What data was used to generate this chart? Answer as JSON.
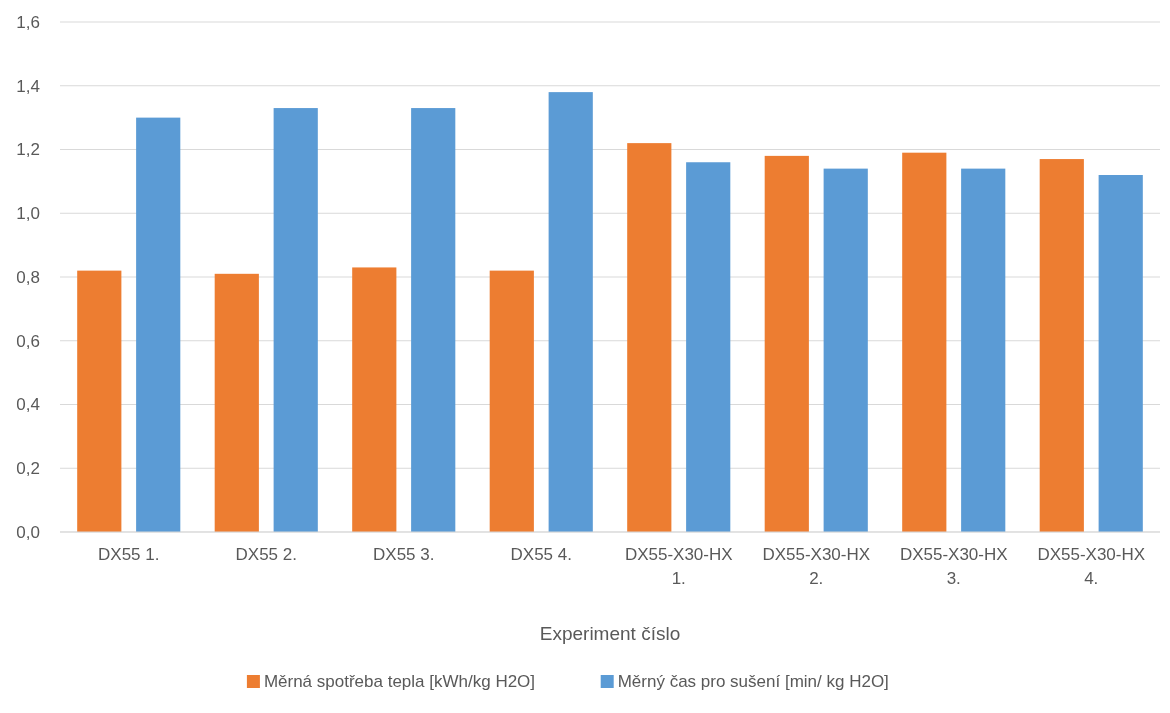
{
  "chart_data": {
    "type": "bar",
    "xlabel": "Experiment číslo",
    "categories": [
      "DX55 1.",
      "DX55 2.",
      "DX55 3.",
      "DX55 4.",
      "DX55-X30-HX 1.",
      "DX55-X30-HX 2.",
      "DX55-X30-HX 3.",
      "DX55-X30-HX 4."
    ],
    "series": [
      {
        "name": "Měrná spotřeba tepla [kWh/kg H2O]",
        "color": "#ed7d31",
        "values": [
          0.82,
          0.81,
          0.83,
          0.82,
          1.22,
          1.18,
          1.19,
          1.17
        ]
      },
      {
        "name": "Měrný čas pro sušení [min/ kg H2O]",
        "color": "#5b9bd5",
        "values": [
          1.3,
          1.33,
          1.33,
          1.38,
          1.16,
          1.14,
          1.14,
          1.12
        ]
      }
    ],
    "ylim": [
      0,
      1.6
    ],
    "yticks": [
      {
        "value": 0,
        "label": "0,0"
      },
      {
        "value": 0.2,
        "label": "0,2"
      },
      {
        "value": 0.4,
        "label": "0,4"
      },
      {
        "value": 0.6,
        "label": "0,6"
      },
      {
        "value": 0.8,
        "label": "0,8"
      },
      {
        "value": 1.0,
        "label": "1,0"
      },
      {
        "value": 1.2,
        "label": "1,2"
      },
      {
        "value": 1.4,
        "label": "1,4"
      },
      {
        "value": 1.6,
        "label": "1,6"
      }
    ],
    "grid": "y",
    "legend": "bottom"
  }
}
